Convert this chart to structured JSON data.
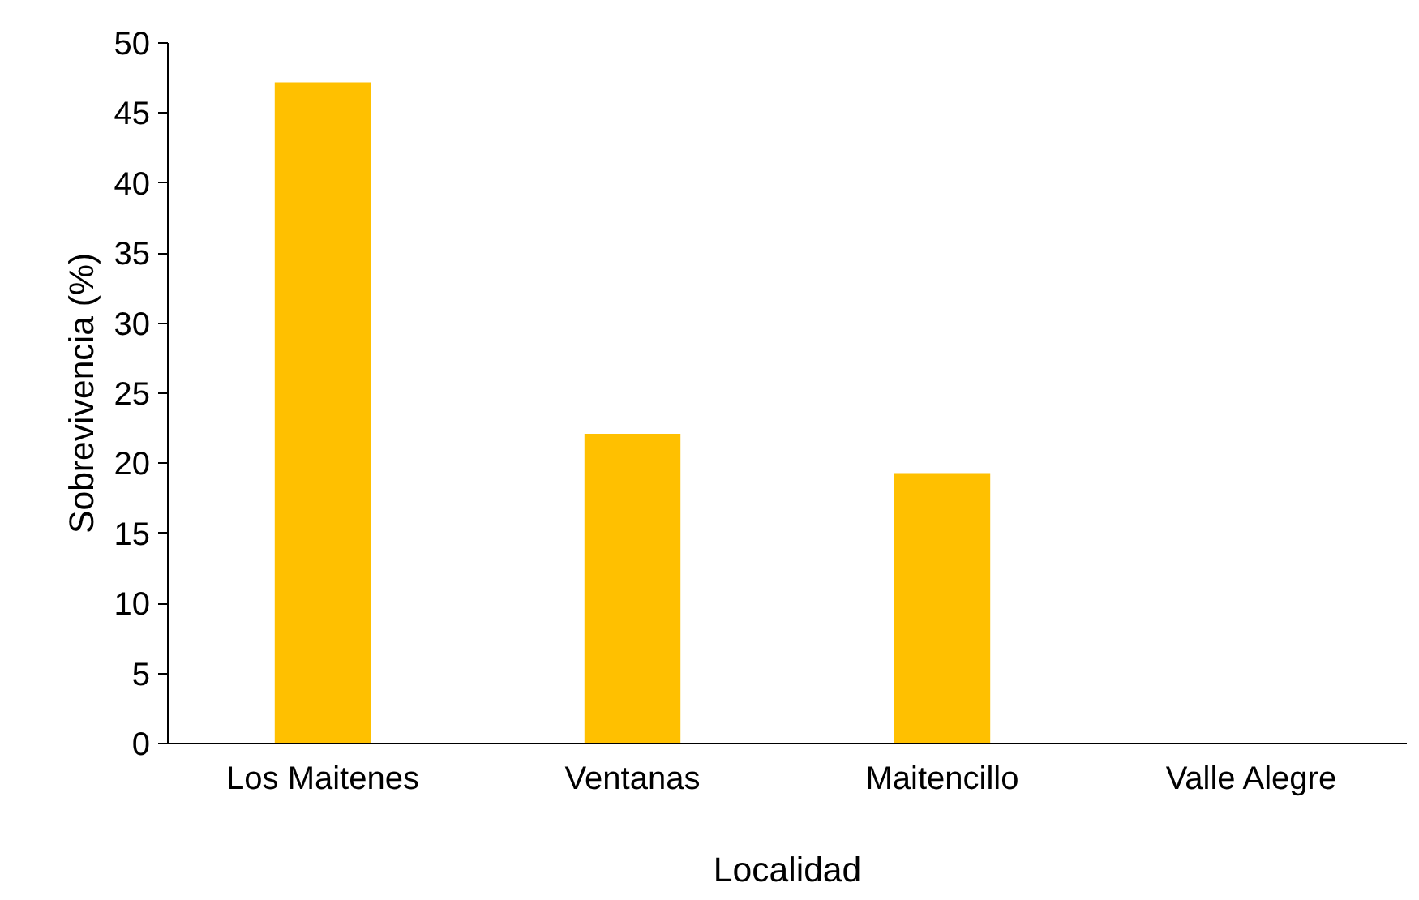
{
  "chart_data": {
    "type": "bar",
    "xlabel": "Localidad",
    "ylabel": "Sobrevivencia (%)",
    "categories": [
      "Los Maitenes",
      "Ventanas",
      "Maitencillo",
      "Valle Alegre"
    ],
    "values": [
      47.2,
      22.1,
      19.3,
      0
    ],
    "color": "#ffc000",
    "ylim": [
      0,
      50
    ],
    "yticks": [
      0,
      5,
      10,
      15,
      20,
      25,
      30,
      35,
      40,
      45,
      50
    ],
    "grid": false
  }
}
